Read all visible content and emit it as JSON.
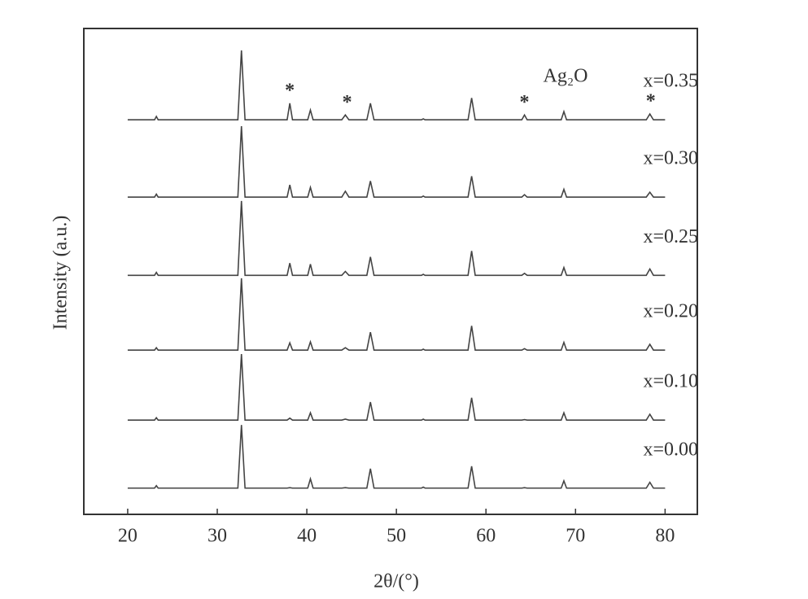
{
  "chart_data": {
    "type": "line",
    "xlabel": "2θ/(°)",
    "ylabel": "Intensity (a.u.)",
    "annotation": "Ag₂O",
    "peak_marker": "*",
    "marked_peaks": [
      38.1,
      44.5,
      64.3,
      78.4
    ],
    "x": [
      20,
      23.0,
      23.2,
      23.4,
      32.3,
      32.7,
      33.1,
      37.8,
      38.1,
      38.4,
      40.1,
      40.4,
      40.7,
      43.9,
      44.3,
      44.7,
      46.7,
      47.1,
      47.5,
      52.8,
      53.0,
      53.2,
      58.0,
      58.4,
      58.8,
      64.0,
      64.3,
      64.6,
      68.4,
      68.7,
      69.0,
      77.9,
      78.3,
      78.7,
      80
    ],
    "series": [
      {
        "name": "x=0.35",
        "color": "#444444",
        "values": [
          81.2,
          81.2,
          81.9,
          81.2,
          81.2,
          95.5,
          81.2,
          81.2,
          84.6,
          81.2,
          81.2,
          83.2,
          81.2,
          81.2,
          82.2,
          81.2,
          81.2,
          84.6,
          81.2,
          81.2,
          81.4,
          81.2,
          81.2,
          85.7,
          81.2,
          81.2,
          82.2,
          81.2,
          81.2,
          82.9,
          81.2,
          81.2,
          82.4,
          81.2,
          81.2
        ]
      },
      {
        "name": "x=0.30",
        "color": "#444444",
        "values": [
          65.3,
          65.3,
          65.9,
          65.3,
          65.3,
          79.9,
          65.3,
          65.3,
          67.8,
          65.3,
          65.3,
          67.3,
          65.3,
          65.3,
          66.5,
          65.3,
          65.3,
          68.6,
          65.3,
          65.3,
          65.5,
          65.3,
          65.3,
          69.6,
          65.3,
          65.3,
          65.8,
          65.3,
          65.3,
          66.9,
          65.3,
          65.3,
          66.3,
          65.3,
          65.3
        ]
      },
      {
        "name": "x=0.25",
        "color": "#444444",
        "values": [
          49.2,
          49.2,
          49.8,
          49.2,
          49.2,
          64.5,
          49.2,
          49.2,
          51.7,
          49.2,
          49.2,
          51.5,
          49.2,
          49.2,
          50.0,
          49.2,
          49.2,
          53.0,
          49.2,
          49.2,
          49.4,
          49.2,
          49.2,
          54.2,
          49.2,
          49.2,
          49.6,
          49.2,
          49.2,
          50.8,
          49.2,
          49.2,
          50.5,
          49.2,
          49.2
        ]
      },
      {
        "name": "x=0.20",
        "color": "#444444",
        "values": [
          33.8,
          33.8,
          34.3,
          33.8,
          33.8,
          48.6,
          33.8,
          33.8,
          35.3,
          33.8,
          33.8,
          35.5,
          33.8,
          33.8,
          34.3,
          33.8,
          33.8,
          37.5,
          33.8,
          33.8,
          34.0,
          33.8,
          33.8,
          38.8,
          33.8,
          33.8,
          34.1,
          33.8,
          33.8,
          35.4,
          33.8,
          33.8,
          35.0,
          33.8,
          33.8
        ]
      },
      {
        "name": "x=0.10",
        "color": "#444444",
        "values": [
          19.4,
          19.4,
          19.9,
          19.4,
          19.4,
          33.0,
          19.4,
          19.4,
          19.8,
          19.4,
          19.4,
          20.9,
          19.4,
          19.4,
          19.6,
          19.4,
          19.4,
          23.1,
          19.4,
          19.4,
          19.6,
          19.4,
          19.4,
          24.0,
          19.4,
          19.4,
          19.5,
          19.4,
          19.4,
          20.9,
          19.4,
          19.4,
          20.6,
          19.4,
          19.4
        ]
      },
      {
        "name": "x=0.00",
        "color": "#444444",
        "values": [
          5.4,
          5.4,
          5.9,
          5.4,
          5.4,
          18.4,
          5.4,
          5.4,
          5.5,
          5.4,
          5.4,
          7.3,
          5.4,
          5.4,
          5.5,
          5.4,
          5.4,
          9.4,
          5.4,
          5.4,
          5.6,
          5.4,
          5.4,
          9.9,
          5.4,
          5.4,
          5.5,
          5.4,
          5.4,
          6.9,
          5.4,
          5.4,
          6.6,
          5.4,
          5.4
        ]
      }
    ],
    "xlim": [
      15.1,
      83.6
    ],
    "ylim": [
      0,
      100
    ],
    "xticks": [
      20,
      30,
      40,
      50,
      60,
      70,
      80
    ]
  }
}
